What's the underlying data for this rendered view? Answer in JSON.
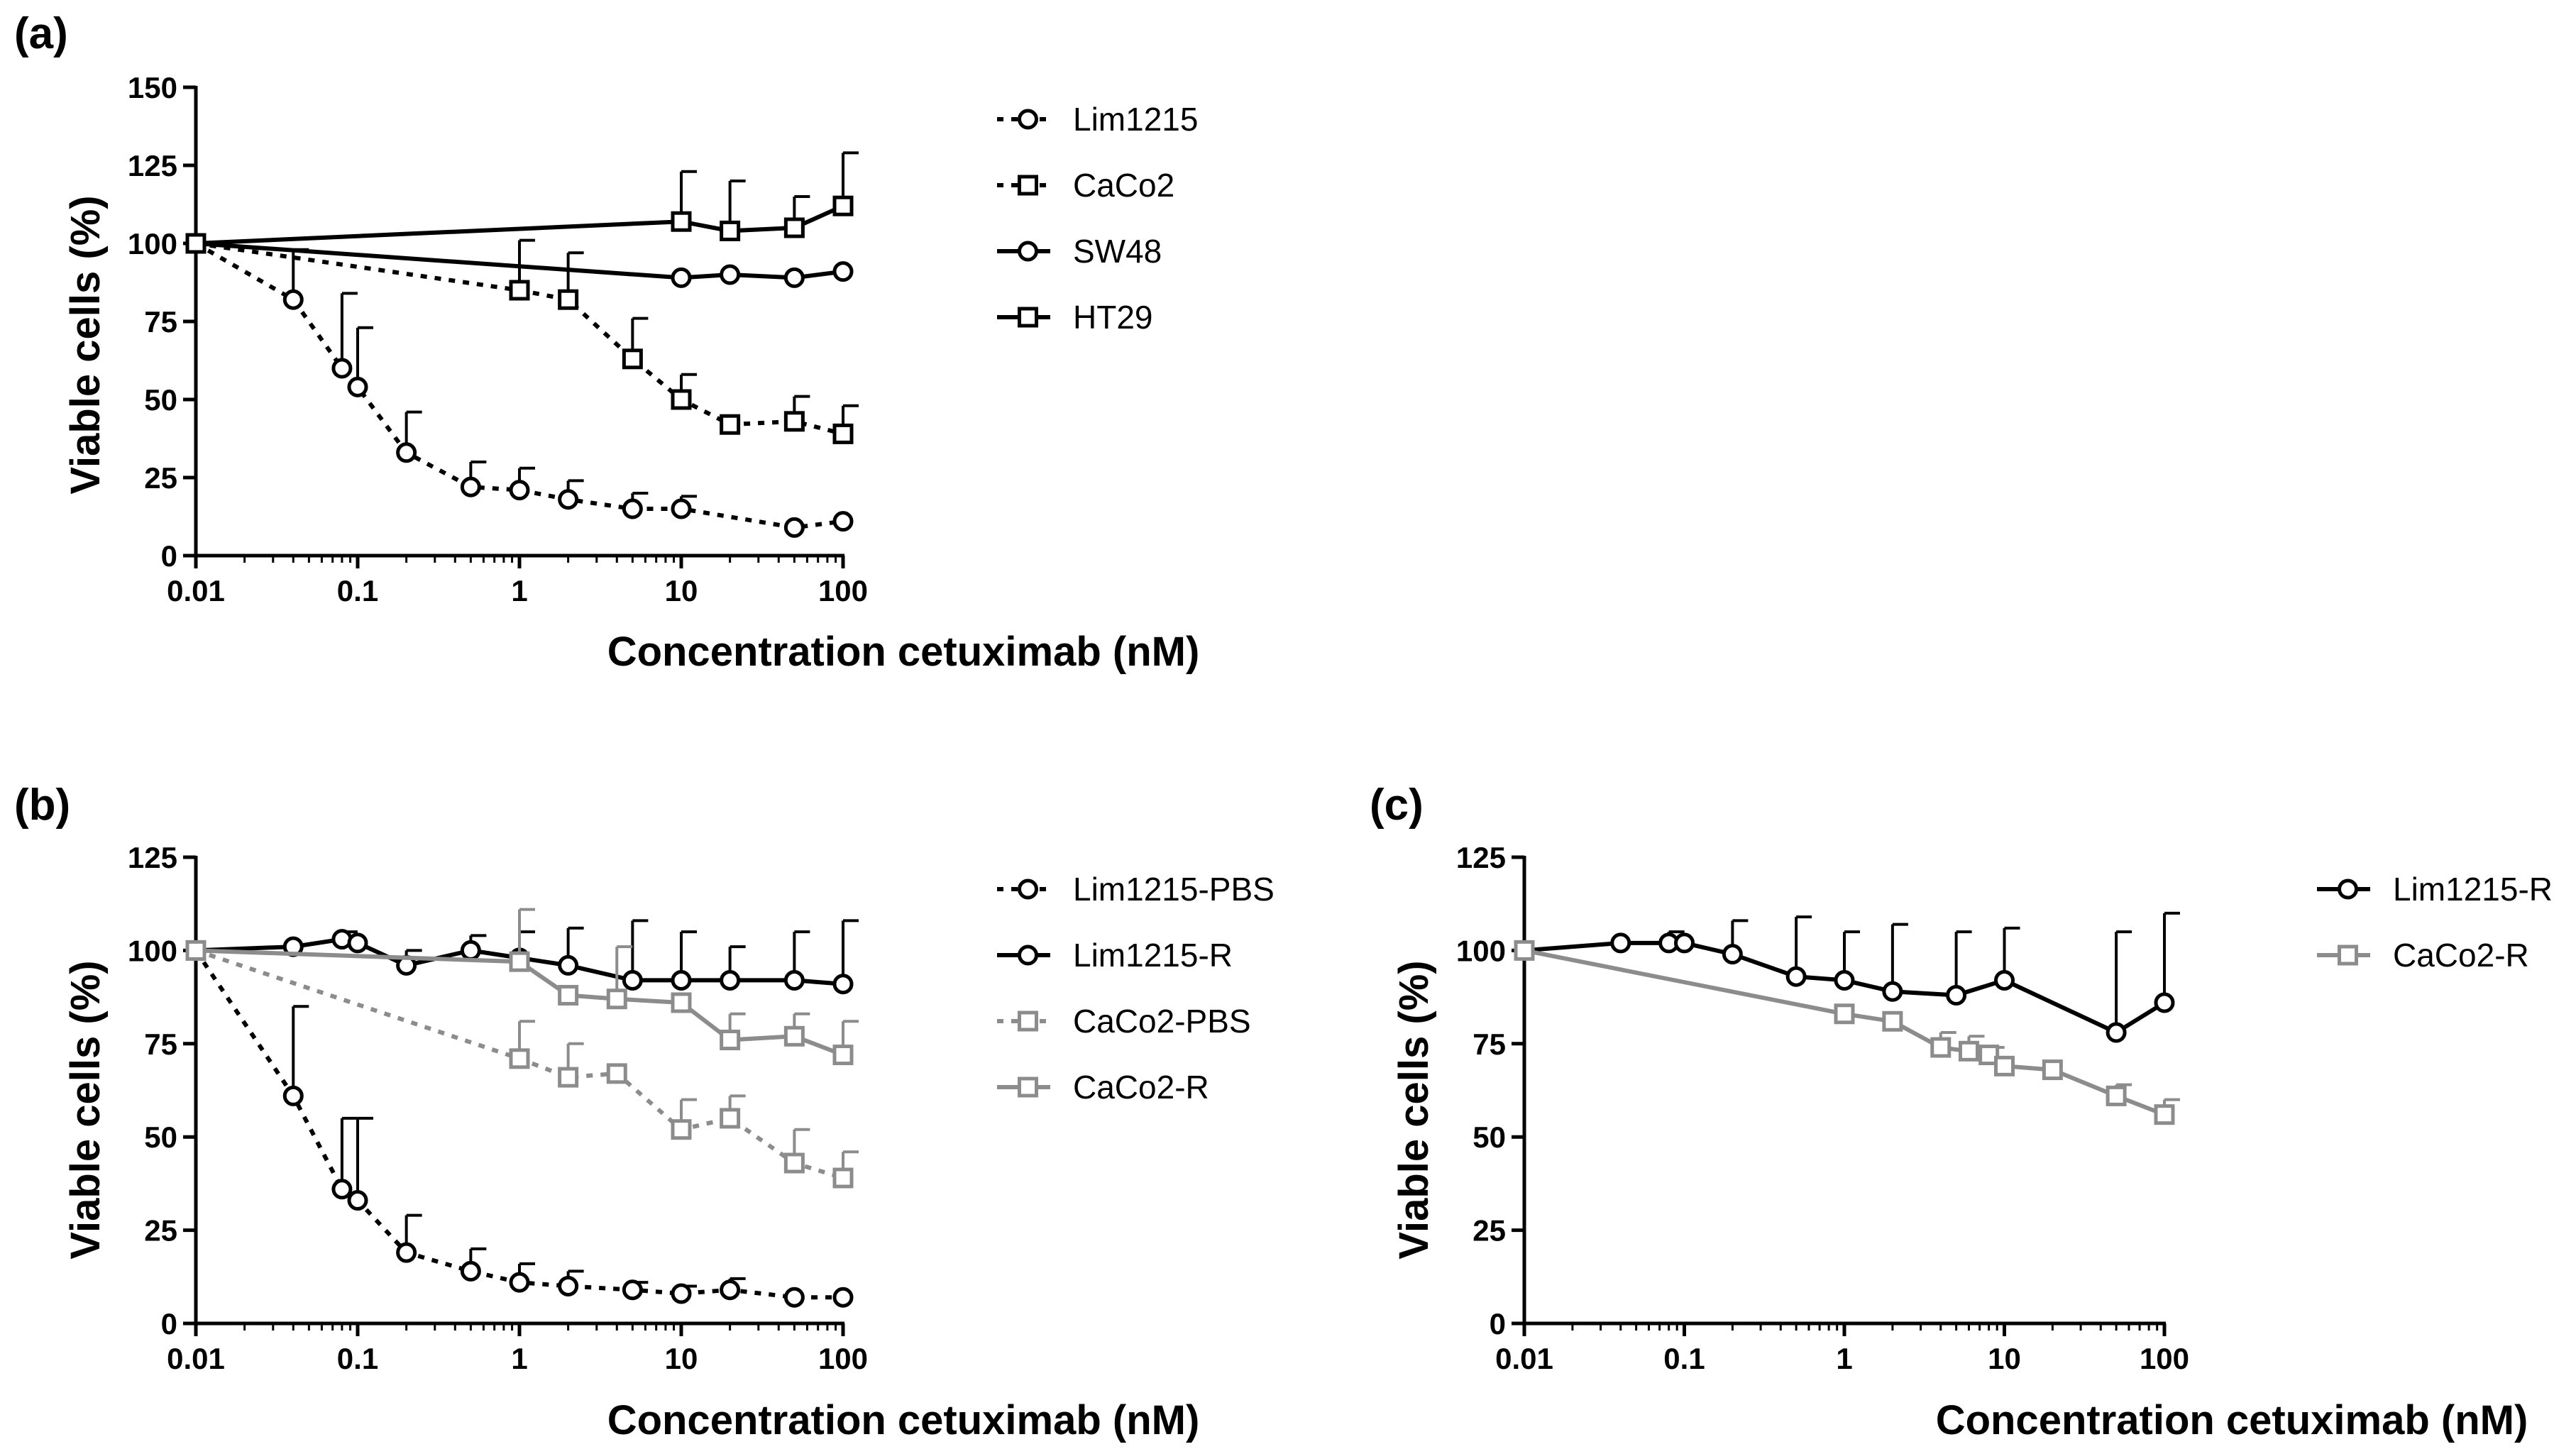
{
  "colors": {
    "black": "#000000",
    "gray": "#8c8c8c",
    "background": "#ffffff"
  },
  "chart_data": [
    {
      "panel": "(a)",
      "type": "line",
      "xscale": "log",
      "xlabel": "Concentration cetuximab (nM)",
      "ylabel": "Viable cells (%)",
      "xlim": [
        0.01,
        100
      ],
      "ylim": [
        0,
        150
      ],
      "xticks": [
        "0.01",
        "0.1",
        "1",
        "10",
        "100"
      ],
      "yticks": [
        "0",
        "25",
        "50",
        "75",
        "100",
        "125",
        "150"
      ],
      "series": [
        {
          "name": "Lim1215",
          "color": "#000000",
          "dashed": true,
          "marker": "circle",
          "x": [
            0.01,
            0.04,
            0.08,
            0.1,
            0.2,
            0.5,
            1,
            2,
            5,
            10,
            50,
            100
          ],
          "y": [
            100,
            82,
            60,
            54,
            33,
            22,
            21,
            18,
            15,
            15,
            9,
            11
          ],
          "err": [
            0,
            16,
            24,
            19,
            13,
            8,
            7,
            6,
            5,
            4,
            0,
            0
          ]
        },
        {
          "name": "CaCo2",
          "color": "#000000",
          "dashed": true,
          "marker": "square",
          "x": [
            0.01,
            1,
            2,
            5,
            10,
            20,
            50,
            100
          ],
          "y": [
            100,
            85,
            82,
            63,
            50,
            42,
            43,
            39
          ],
          "err": [
            0,
            16,
            15,
            13,
            8,
            0,
            8,
            9
          ]
        },
        {
          "name": "SW48",
          "color": "#000000",
          "dashed": false,
          "marker": "circle",
          "x": [
            0.01,
            10,
            20,
            50,
            100
          ],
          "y": [
            100,
            89,
            90,
            89,
            91
          ],
          "err": [
            0,
            0,
            0,
            0,
            0
          ]
        },
        {
          "name": "HT29",
          "color": "#000000",
          "dashed": false,
          "marker": "square",
          "x": [
            0.01,
            10,
            20,
            50,
            100
          ],
          "y": [
            100,
            107,
            104,
            105,
            112
          ],
          "err": [
            0,
            16,
            16,
            10,
            17
          ]
        }
      ]
    },
    {
      "panel": "(b)",
      "type": "line",
      "xscale": "log",
      "xlabel": "Concentration cetuximab (nM)",
      "ylabel": "Viable cells (%)",
      "xlim": [
        0.01,
        100
      ],
      "ylim": [
        0,
        125
      ],
      "xticks": [
        "0.01",
        "0.1",
        "1",
        "10",
        "100"
      ],
      "yticks": [
        "0",
        "25",
        "50",
        "75",
        "100",
        "125"
      ],
      "series": [
        {
          "name": "Lim1215-PBS",
          "color": "#000000",
          "dashed": true,
          "marker": "circle",
          "x": [
            0.01,
            0.04,
            0.08,
            0.1,
            0.2,
            0.5,
            1,
            2,
            5,
            10,
            20,
            50,
            100
          ],
          "y": [
            100,
            61,
            36,
            33,
            19,
            14,
            11,
            10,
            9,
            8,
            9,
            7,
            7
          ],
          "err": [
            0,
            24,
            19,
            22,
            10,
            6,
            5,
            4,
            2,
            2,
            3,
            0,
            0
          ]
        },
        {
          "name": "Lim1215-R",
          "color": "#000000",
          "dashed": false,
          "marker": "circle",
          "x": [
            0.01,
            0.04,
            0.08,
            0.1,
            0.2,
            0.5,
            1,
            2,
            5,
            10,
            20,
            50,
            100
          ],
          "y": [
            100,
            101,
            103,
            102,
            96,
            100,
            98,
            96,
            92,
            92,
            92,
            92,
            91
          ],
          "err": [
            0,
            0,
            2,
            0,
            4,
            4,
            7,
            10,
            16,
            13,
            9,
            13,
            17
          ]
        },
        {
          "name": "CaCo2-PBS",
          "color": "#8c8c8c",
          "dashed": true,
          "marker": "square",
          "x": [
            0.01,
            1,
            2,
            4,
            10,
            20,
            50,
            100
          ],
          "y": [
            100,
            71,
            66,
            67,
            52,
            55,
            43,
            39
          ],
          "err": [
            0,
            10,
            9,
            0,
            8,
            6,
            9,
            7
          ]
        },
        {
          "name": "CaCo2-R",
          "color": "#8c8c8c",
          "dashed": false,
          "marker": "square",
          "x": [
            0.01,
            1,
            2,
            4,
            10,
            20,
            50,
            100
          ],
          "y": [
            100,
            97,
            88,
            87,
            86,
            76,
            77,
            72
          ],
          "err": [
            0,
            14,
            0,
            14,
            0,
            7,
            6,
            9
          ]
        }
      ]
    },
    {
      "panel": "(c)",
      "type": "line",
      "xscale": "log",
      "xlabel": "Concentration cetuximab (nM)",
      "ylabel": "Viable cells (%)",
      "xlim": [
        0.01,
        100
      ],
      "ylim": [
        0,
        125
      ],
      "xticks": [
        "0.01",
        "0.1",
        "1",
        "10",
        "100"
      ],
      "yticks": [
        "0",
        "25",
        "50",
        "75",
        "100",
        "125"
      ],
      "series": [
        {
          "name": "Lim1215-R",
          "color": "#000000",
          "dashed": false,
          "marker": "circle",
          "x": [
            0.01,
            0.04,
            0.08,
            0.1,
            0.2,
            0.5,
            1,
            2,
            5,
            10,
            50,
            100
          ],
          "y": [
            100,
            102,
            102,
            102,
            99,
            93,
            92,
            89,
            88,
            92,
            78,
            86
          ],
          "err": [
            0,
            0,
            3,
            0,
            9,
            16,
            13,
            18,
            17,
            14,
            27,
            24
          ]
        },
        {
          "name": "CaCo2-R",
          "color": "#8c8c8c",
          "dashed": false,
          "marker": "square",
          "x": [
            0.01,
            1,
            2,
            4,
            6,
            8,
            10,
            20,
            50,
            100
          ],
          "y": [
            100,
            83,
            81,
            74,
            73,
            72,
            69,
            68,
            61,
            56
          ],
          "err": [
            0,
            0,
            0,
            4,
            4,
            2,
            0,
            0,
            3,
            4
          ]
        }
      ]
    }
  ]
}
